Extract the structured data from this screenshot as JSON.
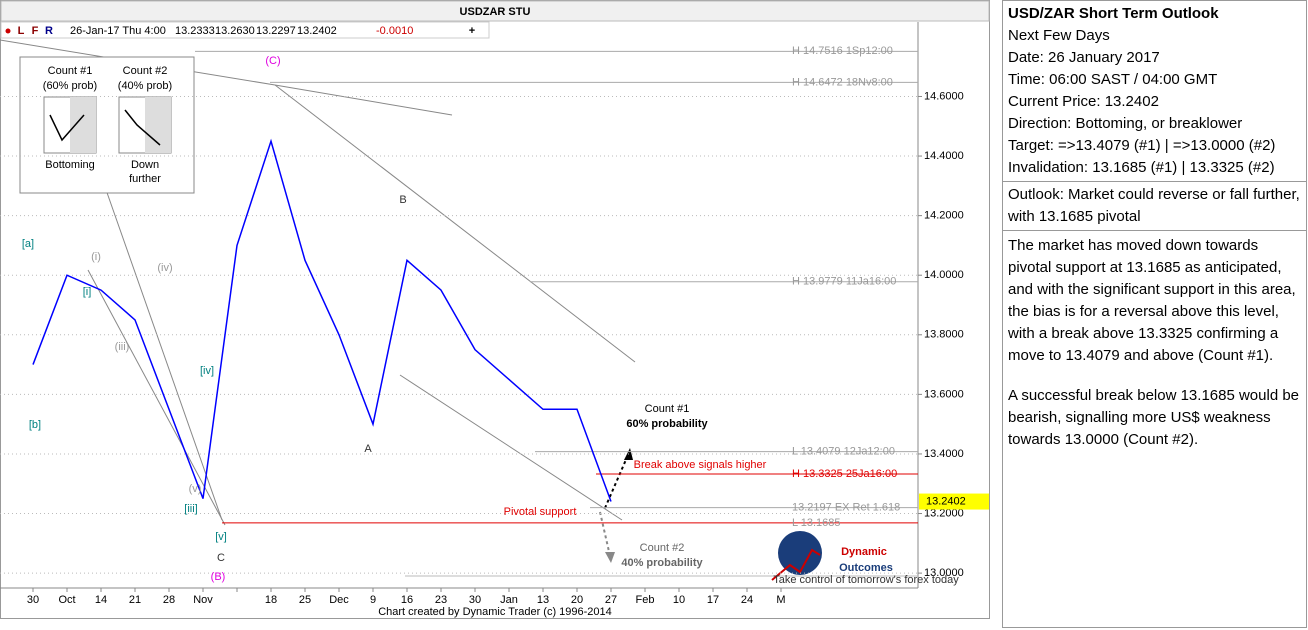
{
  "chart_data": {
    "type": "line",
    "title": "USDZAR STU",
    "toolbar": [
      "L",
      "F",
      "R"
    ],
    "info": [
      "26-Jan-17 Thu 4:00",
      "13.2333",
      "13.2630",
      "13.2297",
      "13.2402",
      "-0.0010"
    ],
    "categories": [
      "30",
      "Oct",
      "14",
      "21",
      "28",
      "Nov",
      null,
      "18",
      "25",
      "Dec",
      "9",
      "16",
      "23",
      "30",
      "Jan",
      "13",
      "20",
      "27",
      "Feb",
      "10",
      "17",
      "24",
      "M"
    ],
    "series": [
      {
        "name": "USDZAR",
        "color": "#0000ff",
        "values": [
          13.7,
          14.0,
          13.95,
          13.85,
          13.55,
          13.25,
          14.1,
          14.45,
          14.05,
          13.8,
          13.5,
          14.05,
          13.95,
          13.75,
          13.65,
          13.55,
          13.55,
          13.2402,
          null,
          null,
          null,
          null,
          null
        ]
      }
    ],
    "ylim": [
      12.95,
      14.85
    ],
    "yticks": [
      {
        "value": 13.0,
        "label": "13.0000"
      },
      {
        "value": 13.2,
        "label": "13.2000"
      },
      {
        "value": 13.4,
        "label": "13.4000"
      },
      {
        "value": 13.6,
        "label": "13.6000"
      },
      {
        "value": 13.8,
        "label": "13.8000"
      },
      {
        "value": 14.0,
        "label": "14.0000"
      },
      {
        "value": 14.2,
        "label": "14.2000"
      },
      {
        "value": 14.4,
        "label": "14.4000"
      },
      {
        "value": 14.6,
        "label": "14.6000"
      }
    ],
    "grid": true,
    "current_price": {
      "value": 13.2402,
      "label": "13.2402"
    },
    "levels": [
      {
        "value": 14.7516,
        "label": "H 14.7516 1Sp12:00",
        "color": "#aaaaaa"
      },
      {
        "value": 14.6472,
        "label": "H 14.6472 18Nv8:00",
        "color": "#aaaaaa"
      },
      {
        "value": 13.9779,
        "label": "H 13.9779 11Ja16:00",
        "color": "#aaaaaa"
      },
      {
        "value": 13.4079,
        "label": "L 13.4079 12Ja12:00",
        "color": "#aaaaaa"
      },
      {
        "value": 13.3325,
        "label": "H 13.3325 25Ja16:00",
        "color": "#e00000"
      },
      {
        "value": 13.2197,
        "label": "13.2197 EX Ret 1.618",
        "color": "#aaaaaa"
      },
      {
        "value": 13.1685,
        "label": "L 13.1685",
        "color": "#e00000"
      }
    ],
    "annotations": [
      "(C)",
      "B",
      "A",
      "C",
      "(B)",
      "[a]",
      "[b]",
      "[i]",
      "[iii]",
      "[iv]",
      "[v]",
      "(i)",
      "(iii)",
      "(iv)",
      "(v)",
      "Count #1",
      "60% probability",
      "Break above signals higher",
      "Pivotal support",
      "Count #2",
      "40% probability"
    ],
    "inset": [
      "Count #1",
      "(60% prob)",
      "Bottoming",
      "Count #2",
      "(40% prob)",
      "Down",
      "further"
    ],
    "logo": [
      "Dynamic",
      "Outcomes",
      "Take control of tomorrow's forex today"
    ],
    "footer": "Chart created by Dynamic Trader  (c) 1996-2014"
  },
  "panel": {
    "title": "USD/ZAR Short Term Outlook",
    "lines": [
      "Next Few Days",
      "Date: 26 January 2017",
      "Time: 06:00 SAST / 04:00 GMT",
      "Current Price: 13.2402",
      "Direction:  Bottoming, or breaklower",
      "Target: =>13.4079 (#1) | =>13.0000 (#2)",
      "Invalidation: 13.1685 (#1) | 13.3325 (#2)"
    ],
    "outlook": "Outlook:  Market could reverse or fall further, with 13.1685 pivotal",
    "body": [
      "The market has moved down towards pivotal support at 13.1685 as anticipated, and with the significant support in this area, the bias is for a reversal above this level, with a break above 13.3325 confirming a move to 13.4079 and above (Count #1).",
      "A successful break below 13.1685 would be bearish, signalling more US$ weakness towards 13.0000 (Count #2)."
    ]
  }
}
